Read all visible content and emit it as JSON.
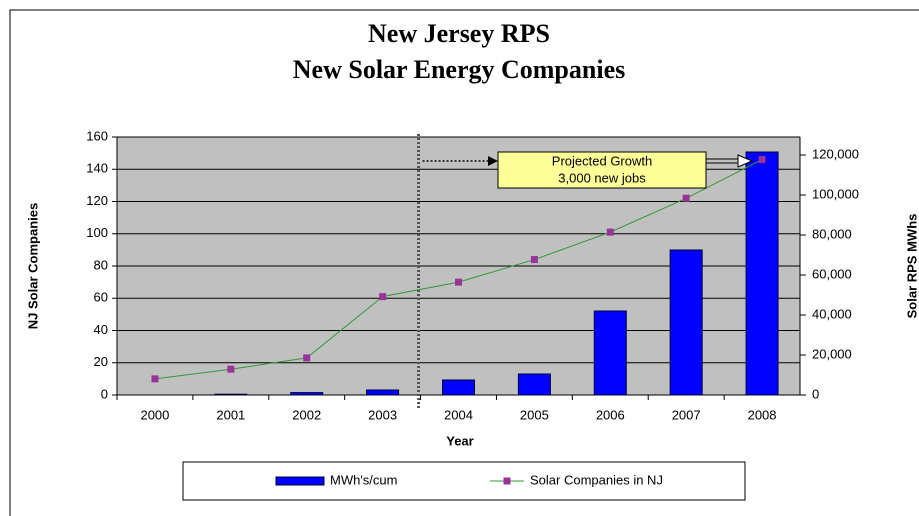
{
  "chart_data": {
    "type": "bar_line",
    "title": "New Jersey RPS",
    "subtitle": "New Solar Energy Companies",
    "x_label": "Year",
    "y_label": "NJ Solar Companies",
    "y2_label": "Solar RPS MWhs",
    "annotation": [
      "Projected Growth",
      "3,000 new jobs"
    ],
    "categories": [
      "2000",
      "2001",
      "2002",
      "2003",
      "2004",
      "2005",
      "2006",
      "2007",
      "2008"
    ],
    "series": [
      {
        "name": "MWh's/cum",
        "type": "bar",
        "axis": "y2",
        "color": "#0000ff",
        "values": [
          0,
          400,
          1200,
          2500,
          7500,
          10500,
          42000,
          72500,
          121500
        ]
      },
      {
        "name": "Solar Companies in NJ",
        "type": "line",
        "axis": "y",
        "color": "#339933",
        "marker_color": "#993399",
        "values": [
          10,
          16,
          23,
          61,
          70,
          84,
          101,
          122,
          146
        ]
      }
    ],
    "ylim": [
      0,
      160
    ],
    "yticks": [
      0,
      20,
      40,
      60,
      80,
      100,
      120,
      140,
      160
    ],
    "y2lim": [
      0,
      129000
    ],
    "y2ticks": [
      0,
      {
        "value": 20000,
        "label": "20,000"
      },
      {
        "value": 40000,
        "label": "40,000"
      },
      {
        "value": 60000,
        "label": "60,000"
      },
      {
        "value": 80000,
        "label": "80,000"
      },
      {
        "value": 100000,
        "label": "100,000"
      },
      {
        "value": 120000,
        "label": "120,000"
      }
    ],
    "grid": true,
    "plot_background": "#c0c0c0",
    "legend": "bottom"
  }
}
